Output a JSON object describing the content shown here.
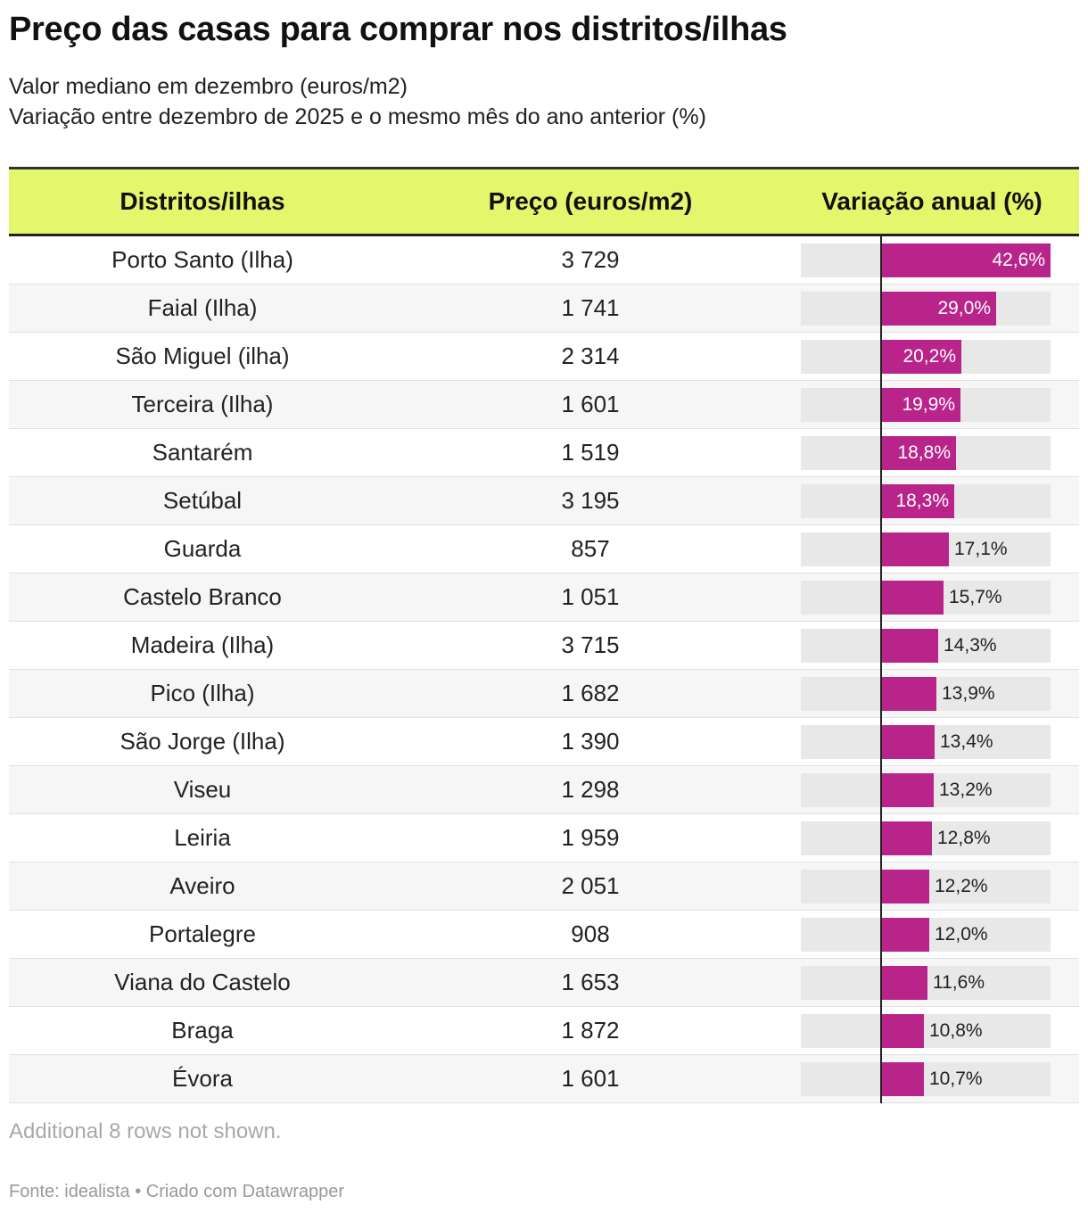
{
  "header": {
    "title": "Preço das casas para comprar nos distritos/ilhas",
    "subtitle_line1": "Valor mediano em dezembro (euros/m2)",
    "subtitle_line2": "Variação entre dezembro de 2025 e o mesmo mês do ano anterior (%)"
  },
  "colors": {
    "header_bg": "#e4f76c",
    "bar": "#b8248a",
    "bar_bg": "#e8e8e8"
  },
  "chart_data": {
    "type": "table",
    "columns": [
      "Distritos/ilhas",
      "Preço (euros/m2)",
      "Variação anual (%)"
    ],
    "bar_max": 42.6,
    "rows": [
      {
        "name": "Porto Santo (Ilha)",
        "price": "3 729",
        "change": 42.6,
        "change_label": "42,6%"
      },
      {
        "name": "Faial (Ilha)",
        "price": "1 741",
        "change": 29.0,
        "change_label": "29,0%"
      },
      {
        "name": "São Miguel (ilha)",
        "price": "2 314",
        "change": 20.2,
        "change_label": "20,2%"
      },
      {
        "name": "Terceira (Ilha)",
        "price": "1 601",
        "change": 19.9,
        "change_label": "19,9%"
      },
      {
        "name": "Santarém",
        "price": "1 519",
        "change": 18.8,
        "change_label": "18,8%"
      },
      {
        "name": "Setúbal",
        "price": "3 195",
        "change": 18.3,
        "change_label": "18,3%"
      },
      {
        "name": "Guarda",
        "price": "857",
        "change": 17.1,
        "change_label": "17,1%"
      },
      {
        "name": "Castelo Branco",
        "price": "1 051",
        "change": 15.7,
        "change_label": "15,7%"
      },
      {
        "name": "Madeira (Ilha)",
        "price": "3 715",
        "change": 14.3,
        "change_label": "14,3%"
      },
      {
        "name": "Pico (Ilha)",
        "price": "1 682",
        "change": 13.9,
        "change_label": "13,9%"
      },
      {
        "name": "São Jorge (Ilha)",
        "price": "1 390",
        "change": 13.4,
        "change_label": "13,4%"
      },
      {
        "name": "Viseu",
        "price": "1 298",
        "change": 13.2,
        "change_label": "13,2%"
      },
      {
        "name": "Leiria",
        "price": "1 959",
        "change": 12.8,
        "change_label": "12,8%"
      },
      {
        "name": "Aveiro",
        "price": "2 051",
        "change": 12.2,
        "change_label": "12,2%"
      },
      {
        "name": "Portalegre",
        "price": "908",
        "change": 12.0,
        "change_label": "12,0%"
      },
      {
        "name": "Viana do Castelo",
        "price": "1 653",
        "change": 11.6,
        "change_label": "11,6%"
      },
      {
        "name": "Braga",
        "price": "1 872",
        "change": 10.8,
        "change_label": "10,8%"
      },
      {
        "name": "Évora",
        "price": "1 601",
        "change": 10.7,
        "change_label": "10,7%"
      }
    ]
  },
  "footer": {
    "note": "Additional 8 rows not shown.",
    "source": "Fonte: idealista • Criado com Datawrapper"
  }
}
